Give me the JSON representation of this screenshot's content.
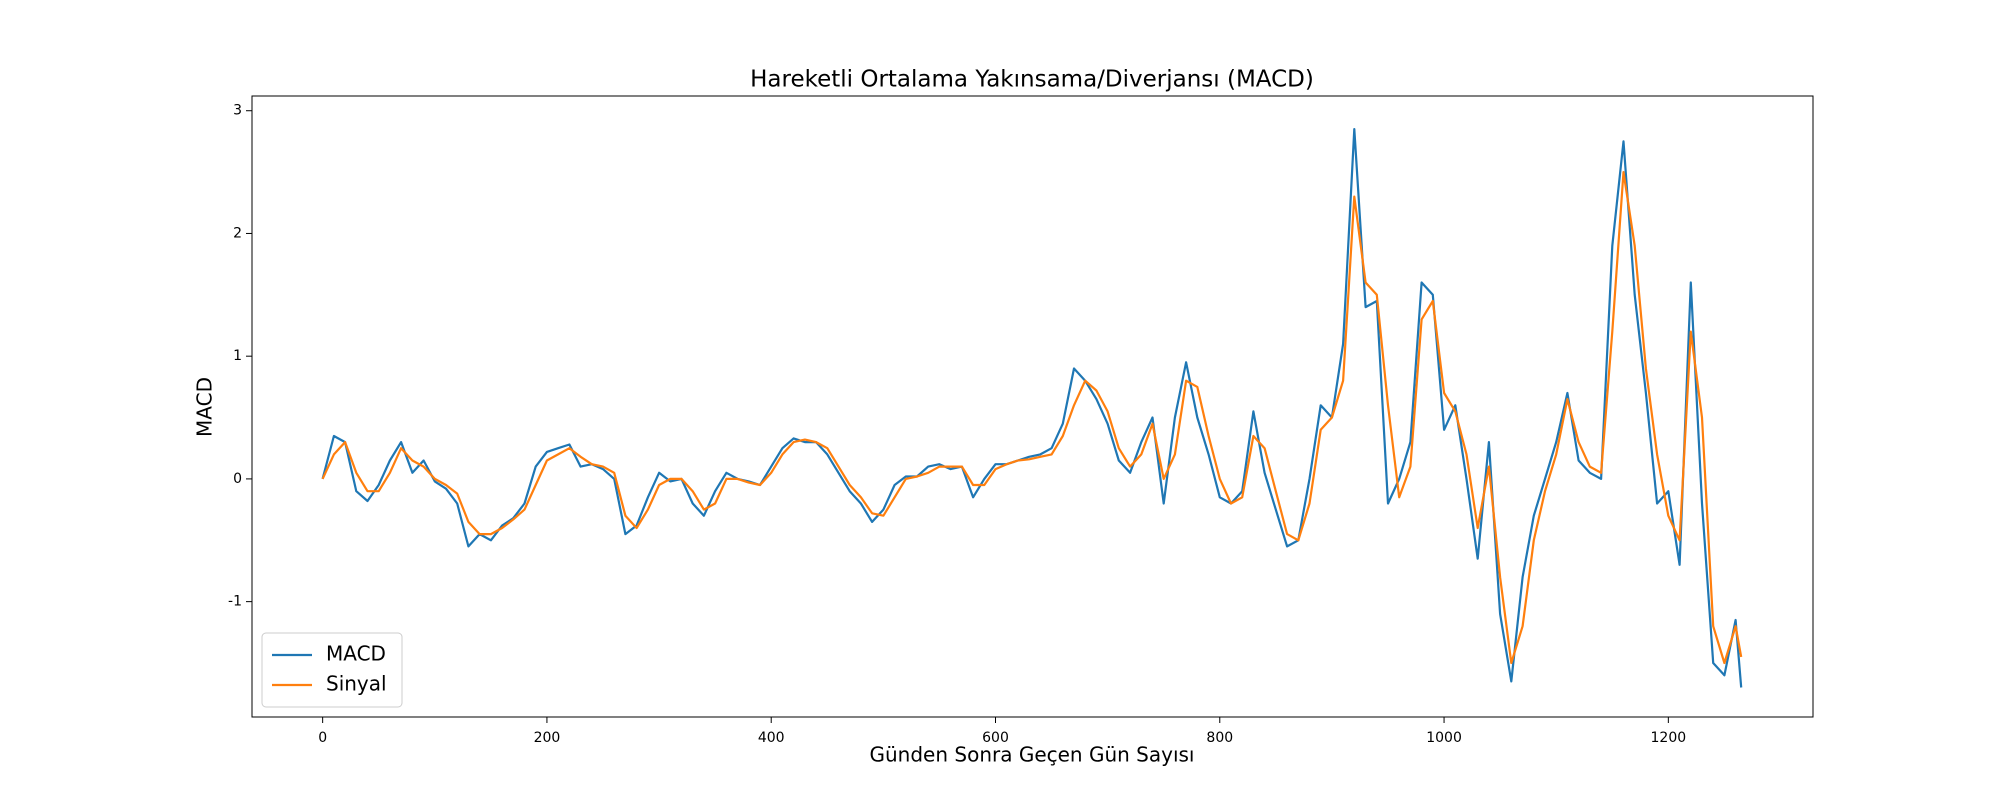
{
  "chart_data": {
    "type": "line",
    "title": "Hareketli Ortalama Yakınsama/Diverjansı (MACD)",
    "x_label": "Günden Sonra Geçen Gün Sayısı",
    "y_label": "MACD",
    "x": [
      0,
      10,
      20,
      30,
      40,
      50,
      60,
      70,
      80,
      90,
      100,
      110,
      120,
      130,
      140,
      150,
      160,
      170,
      180,
      190,
      200,
      210,
      220,
      230,
      240,
      250,
      260,
      270,
      280,
      290,
      300,
      310,
      320,
      330,
      340,
      350,
      360,
      370,
      380,
      390,
      400,
      410,
      420,
      430,
      440,
      450,
      460,
      470,
      480,
      490,
      500,
      510,
      520,
      530,
      540,
      550,
      560,
      570,
      580,
      590,
      600,
      610,
      620,
      630,
      640,
      650,
      660,
      670,
      680,
      690,
      700,
      710,
      720,
      730,
      740,
      750,
      760,
      770,
      780,
      790,
      800,
      810,
      820,
      830,
      840,
      850,
      860,
      870,
      880,
      890,
      900,
      910,
      920,
      930,
      940,
      950,
      960,
      970,
      980,
      990,
      1000,
      1010,
      1020,
      1030,
      1040,
      1050,
      1060,
      1070,
      1080,
      1090,
      1100,
      1110,
      1120,
      1130,
      1140,
      1150,
      1160,
      1170,
      1180,
      1190,
      1200,
      1210,
      1220,
      1230,
      1240,
      1250,
      1260,
      1265
    ],
    "series": [
      {
        "name": "MACD",
        "color": "#1f77b4",
        "values": [
          0,
          0.35,
          0.3,
          -0.1,
          -0.18,
          -0.05,
          0.15,
          0.3,
          0.05,
          0.15,
          -0.02,
          -0.08,
          -0.2,
          -0.55,
          -0.45,
          -0.5,
          -0.38,
          -0.32,
          -0.2,
          0.1,
          0.22,
          0.25,
          0.28,
          0.1,
          0.12,
          0.08,
          0,
          -0.45,
          -0.38,
          -0.15,
          0.05,
          -0.02,
          0,
          -0.2,
          -0.3,
          -0.1,
          0.05,
          0,
          -0.02,
          -0.05,
          0.1,
          0.25,
          0.33,
          0.3,
          0.3,
          0.2,
          0.05,
          -0.1,
          -0.2,
          -0.35,
          -0.25,
          -0.05,
          0.02,
          0.02,
          0.1,
          0.12,
          0.08,
          0.1,
          -0.15,
          0,
          0.12,
          0.12,
          0.15,
          0.18,
          0.2,
          0.25,
          0.45,
          0.9,
          0.8,
          0.65,
          0.45,
          0.15,
          0.05,
          0.3,
          0.5,
          -0.2,
          0.5,
          0.95,
          0.5,
          0.2,
          -0.15,
          -0.2,
          -0.1,
          0.55,
          0.05,
          -0.25,
          -0.55,
          -0.5,
          0,
          0.6,
          0.5,
          1.1,
          2.85,
          1.4,
          1.45,
          -0.2,
          0,
          0.3,
          1.6,
          1.5,
          0.4,
          0.6,
          0,
          -0.65,
          0.3,
          -1.1,
          -1.65,
          -0.8,
          -0.3,
          0,
          0.3,
          0.7,
          0.15,
          0.05,
          0,
          1.9,
          2.75,
          1.5,
          0.7,
          -0.2,
          -0.1,
          -0.7,
          1.6,
          -0.2,
          -1.5,
          -1.6,
          -1.15,
          -1.7
        ]
      },
      {
        "name": "Sinyal",
        "color": "#ff7f0e",
        "values": [
          0,
          0.2,
          0.3,
          0.05,
          -0.1,
          -0.1,
          0.05,
          0.25,
          0.15,
          0.1,
          0,
          -0.05,
          -0.12,
          -0.35,
          -0.45,
          -0.45,
          -0.4,
          -0.33,
          -0.25,
          -0.05,
          0.15,
          0.2,
          0.25,
          0.18,
          0.12,
          0.1,
          0.05,
          -0.3,
          -0.4,
          -0.25,
          -0.05,
          0,
          0,
          -0.1,
          -0.25,
          -0.2,
          0,
          0,
          -0.03,
          -0.05,
          0.05,
          0.2,
          0.3,
          0.32,
          0.3,
          0.25,
          0.1,
          -0.05,
          -0.15,
          -0.28,
          -0.3,
          -0.15,
          0,
          0.02,
          0.05,
          0.1,
          0.1,
          0.1,
          -0.05,
          -0.05,
          0.08,
          0.12,
          0.15,
          0.16,
          0.18,
          0.2,
          0.35,
          0.6,
          0.8,
          0.72,
          0.55,
          0.25,
          0.1,
          0.2,
          0.45,
          0,
          0.2,
          0.8,
          0.75,
          0.35,
          0,
          -0.2,
          -0.15,
          0.35,
          0.25,
          -0.1,
          -0.45,
          -0.5,
          -0.2,
          0.4,
          0.5,
          0.8,
          2.3,
          1.6,
          1.5,
          0.6,
          -0.15,
          0.1,
          1.3,
          1.45,
          0.7,
          0.55,
          0.2,
          -0.4,
          0.1,
          -0.8,
          -1.5,
          -1.2,
          -0.5,
          -0.1,
          0.2,
          0.65,
          0.3,
          0.1,
          0.05,
          1.2,
          2.5,
          1.9,
          0.9,
          0.2,
          -0.3,
          -0.5,
          1.2,
          0.5,
          -1.2,
          -1.5,
          -1.2,
          -1.45
        ]
      }
    ],
    "xlim": [
      -63,
      1329
    ],
    "ylim": [
      -1.94,
      3.12
    ],
    "xticks": [
      0,
      200,
      400,
      600,
      800,
      1000,
      1200
    ],
    "yticks": [
      -1,
      0,
      1,
      2,
      3
    ],
    "legend": "lower left",
    "grid": false
  }
}
